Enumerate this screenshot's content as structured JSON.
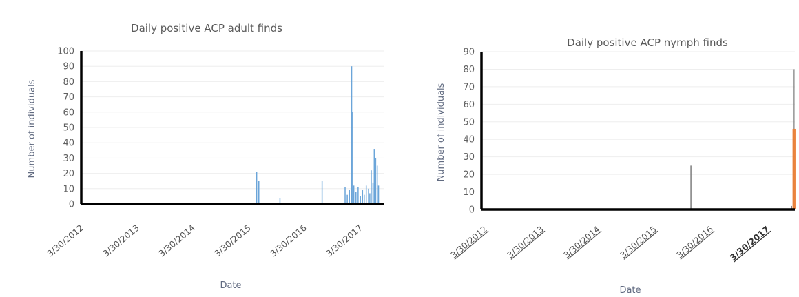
{
  "chart_data": [
    {
      "type": "bar",
      "title": "Daily positive ACP adult finds",
      "xlabel": "Date",
      "ylabel": "Number of individuals",
      "ylim": [
        0,
        100
      ],
      "yticks": [
        "0",
        "10",
        "20",
        "30",
        "40",
        "50",
        "60",
        "70",
        "80",
        "90",
        "100"
      ],
      "x_tick_labels": [
        "3/30/2012",
        "3/30/2013",
        "3/30/2014",
        "3/30/2015",
        "3/30/2016",
        "3/30/2017"
      ],
      "xlim": [
        "2012-03-30",
        "2018-01-15"
      ],
      "grid": true,
      "color": "#5b9bd5",
      "series": [
        {
          "x": [
            "2015-08-10",
            "2015-08-25",
            "2016-01-20",
            "2016-11-10",
            "2017-04-20",
            "2017-05-05",
            "2017-05-20",
            "2017-06-05",
            "2017-06-12",
            "2017-06-20",
            "2017-07-05",
            "2017-07-20",
            "2017-08-05",
            "2017-08-20",
            "2017-09-01",
            "2017-09-15",
            "2017-10-01",
            "2017-10-10",
            "2017-10-20",
            "2017-11-01",
            "2017-11-10",
            "2017-11-20",
            "2017-12-01",
            "2017-12-10"
          ],
          "values": [
            21,
            15,
            4,
            15,
            11,
            6,
            9,
            90,
            60,
            12,
            8,
            11,
            5,
            9,
            6,
            12,
            10,
            7,
            22,
            14,
            36,
            30,
            25,
            12
          ]
        }
      ]
    },
    {
      "type": "bar",
      "title": "Daily positive ACP nymph finds",
      "xlabel": "Date",
      "ylabel": "Number of individuals",
      "ylim": [
        0,
        90
      ],
      "yticks": [
        "0",
        "10",
        "20",
        "30",
        "40",
        "50",
        "60",
        "70",
        "80",
        "90"
      ],
      "x_tick_labels": [
        "3/30/2012",
        "3/30/2013",
        "3/30/2014",
        "3/30/2015",
        "3/30/2016",
        "3/30/2017"
      ],
      "xlim": [
        "2012-03-30",
        "2017-09-10"
      ],
      "grid": true,
      "series": [
        {
          "x": [
            "2015-11-20",
            "2017-08-20",
            "2017-09-05",
            "2017-09-06"
          ],
          "values": [
            25,
            2,
            80,
            46
          ],
          "colors": [
            "#707070",
            "#707070",
            "#888888",
            "#ed7d31"
          ]
        }
      ]
    }
  ]
}
